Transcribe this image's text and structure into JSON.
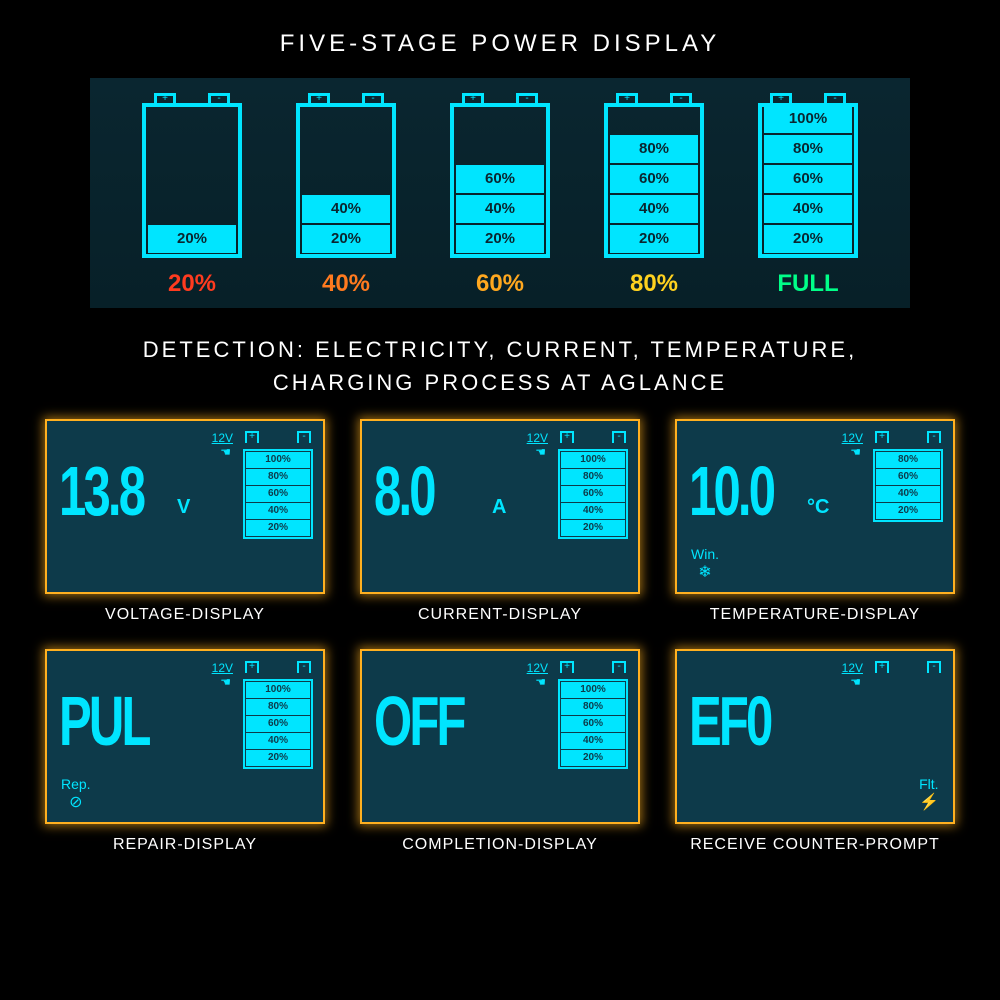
{
  "title": "FIVE-STAGE POWER DISPLAY",
  "subtitle_line1": "DETECTION: ELECTRICITY, CURRENT, TEMPERATURE,",
  "subtitle_line2": "CHARGING PROCESS AT AGLANCE",
  "colors": {
    "bg": "#000000",
    "lcd_bg": "#0d3a4a",
    "cyan": "#00e5ff",
    "glow": "#ffb020"
  },
  "stage_box": {
    "segments": [
      "20%",
      "40%",
      "60%",
      "80%",
      "100%"
    ],
    "batteries": [
      {
        "fill": 1,
        "label": "20%",
        "color": "#ff3b1f"
      },
      {
        "fill": 2,
        "label": "40%",
        "color": "#ff7a1f"
      },
      {
        "fill": 3,
        "label": "60%",
        "color": "#ffa81f"
      },
      {
        "fill": 4,
        "label": "80%",
        "color": "#ffd21f"
      },
      {
        "fill": 5,
        "label": "FULL",
        "color": "#00ff88"
      }
    ]
  },
  "mini_segments": [
    "100%",
    "80%",
    "60%",
    "40%",
    "20%"
  ],
  "mini_segments_4": [
    "80%",
    "60%",
    "40%",
    "20%"
  ],
  "panels": [
    {
      "value": "13.8",
      "unit": "V",
      "v12": "12V",
      "mode": "",
      "mode_pos": "left",
      "segs": 5,
      "label": "VOLTAGE-DISPLAY"
    },
    {
      "value": "8.0",
      "unit": "A",
      "v12": "12V",
      "mode": "",
      "mode_pos": "left",
      "segs": 5,
      "label": "CURRENT-DISPLAY"
    },
    {
      "value": "10.0",
      "unit": "°C",
      "v12": "12V",
      "mode": "Win.",
      "mode_icon": "❄",
      "mode_pos": "left",
      "segs": 4,
      "label": "TEMPERATURE-DISPLAY"
    },
    {
      "value": "PUL",
      "unit": "",
      "v12": "12V",
      "mode": "Rep.",
      "mode_icon": "⊘",
      "mode_pos": "left",
      "segs": 5,
      "label": "REPAIR-DISPLAY"
    },
    {
      "value": "OFF",
      "unit": "",
      "v12": "12V",
      "mode": "",
      "mode_pos": "left",
      "segs": 5,
      "label": "COMPLETION-DISPLAY"
    },
    {
      "value": "EF0",
      "unit": "",
      "v12": "12V",
      "mode": "Flt.",
      "mode_icon": "⚡",
      "mode_pos": "right",
      "segs": 0,
      "label": "RECEIVE COUNTER-PROMPT"
    }
  ]
}
